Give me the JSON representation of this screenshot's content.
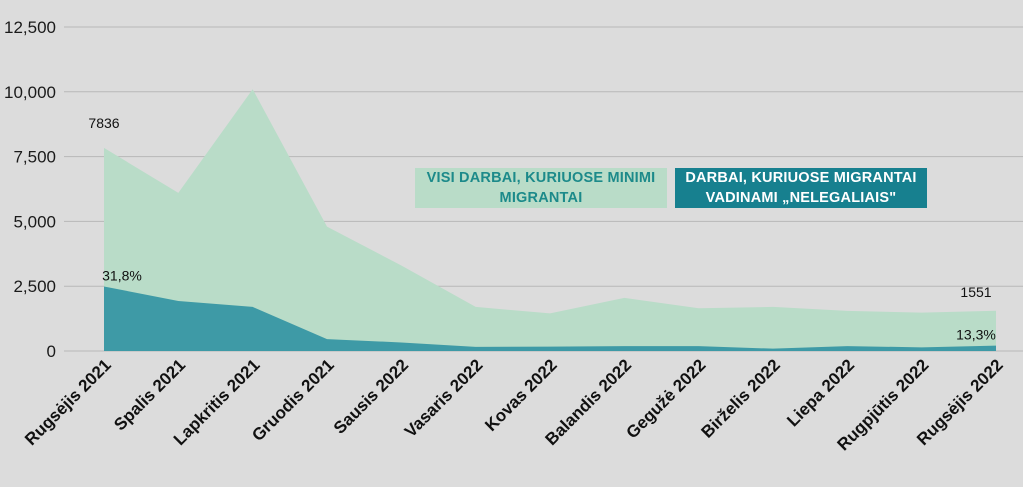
{
  "chart_data": {
    "type": "area",
    "categories": [
      "Rugsėjis 2021",
      "Spalis 2021",
      "Lapkritis 2021",
      "Gruodis 2021",
      "Sausis 2022",
      "Vasaris 2022",
      "Kovas 2022",
      "Balandis 2022",
      "Gegužė 2022",
      "Birželis 2022",
      "Liepa 2022",
      "Rugpjūtis 2022",
      "Rugsėjis 2022"
    ],
    "ylim": [
      0,
      12500
    ],
    "y_ticks": [
      0,
      2500,
      5000,
      7500,
      10000,
      12500
    ],
    "y_tick_labels": [
      "0",
      "2,500",
      "5,000",
      "7,500",
      "10,000",
      "12,500"
    ],
    "grid": true,
    "series": [
      {
        "name": "VISI DARBAI, KURIUOSE MINIMI MIGRANTAI",
        "color": "#b9dcc8",
        "values": [
          7836,
          6100,
          10100,
          4800,
          3300,
          1700,
          1450,
          2050,
          1650,
          1700,
          1550,
          1480,
          1551
        ]
      },
      {
        "name": "DARBAI, KURIUOSE MIGRANTAI VADINAMI „NELEGALIAIS\"",
        "color": "#3e9aa6",
        "values": [
          2490,
          1930,
          1700,
          460,
          330,
          160,
          170,
          190,
          190,
          90,
          190,
          140,
          206
        ]
      }
    ],
    "annotations": [
      {
        "text": "7836",
        "category_index": 0,
        "series_index": 0
      },
      {
        "text": "31,8%",
        "category_index": 0,
        "series_index": 1
      },
      {
        "text": "1551",
        "category_index": 12,
        "series_index": 0
      },
      {
        "text": "13,3%",
        "category_index": 12,
        "series_index": 1
      }
    ]
  },
  "legend": {
    "all_label": "VISI DARBAI, KURIUOSE MINIMI MIGRANTAI",
    "all_color": "#b9dcc8",
    "illegal_label": "DARBAI, KURIUOSE MIGRANTAI VADINAMI „NELEGALIAIS\"",
    "illegal_color": "#17808f"
  }
}
